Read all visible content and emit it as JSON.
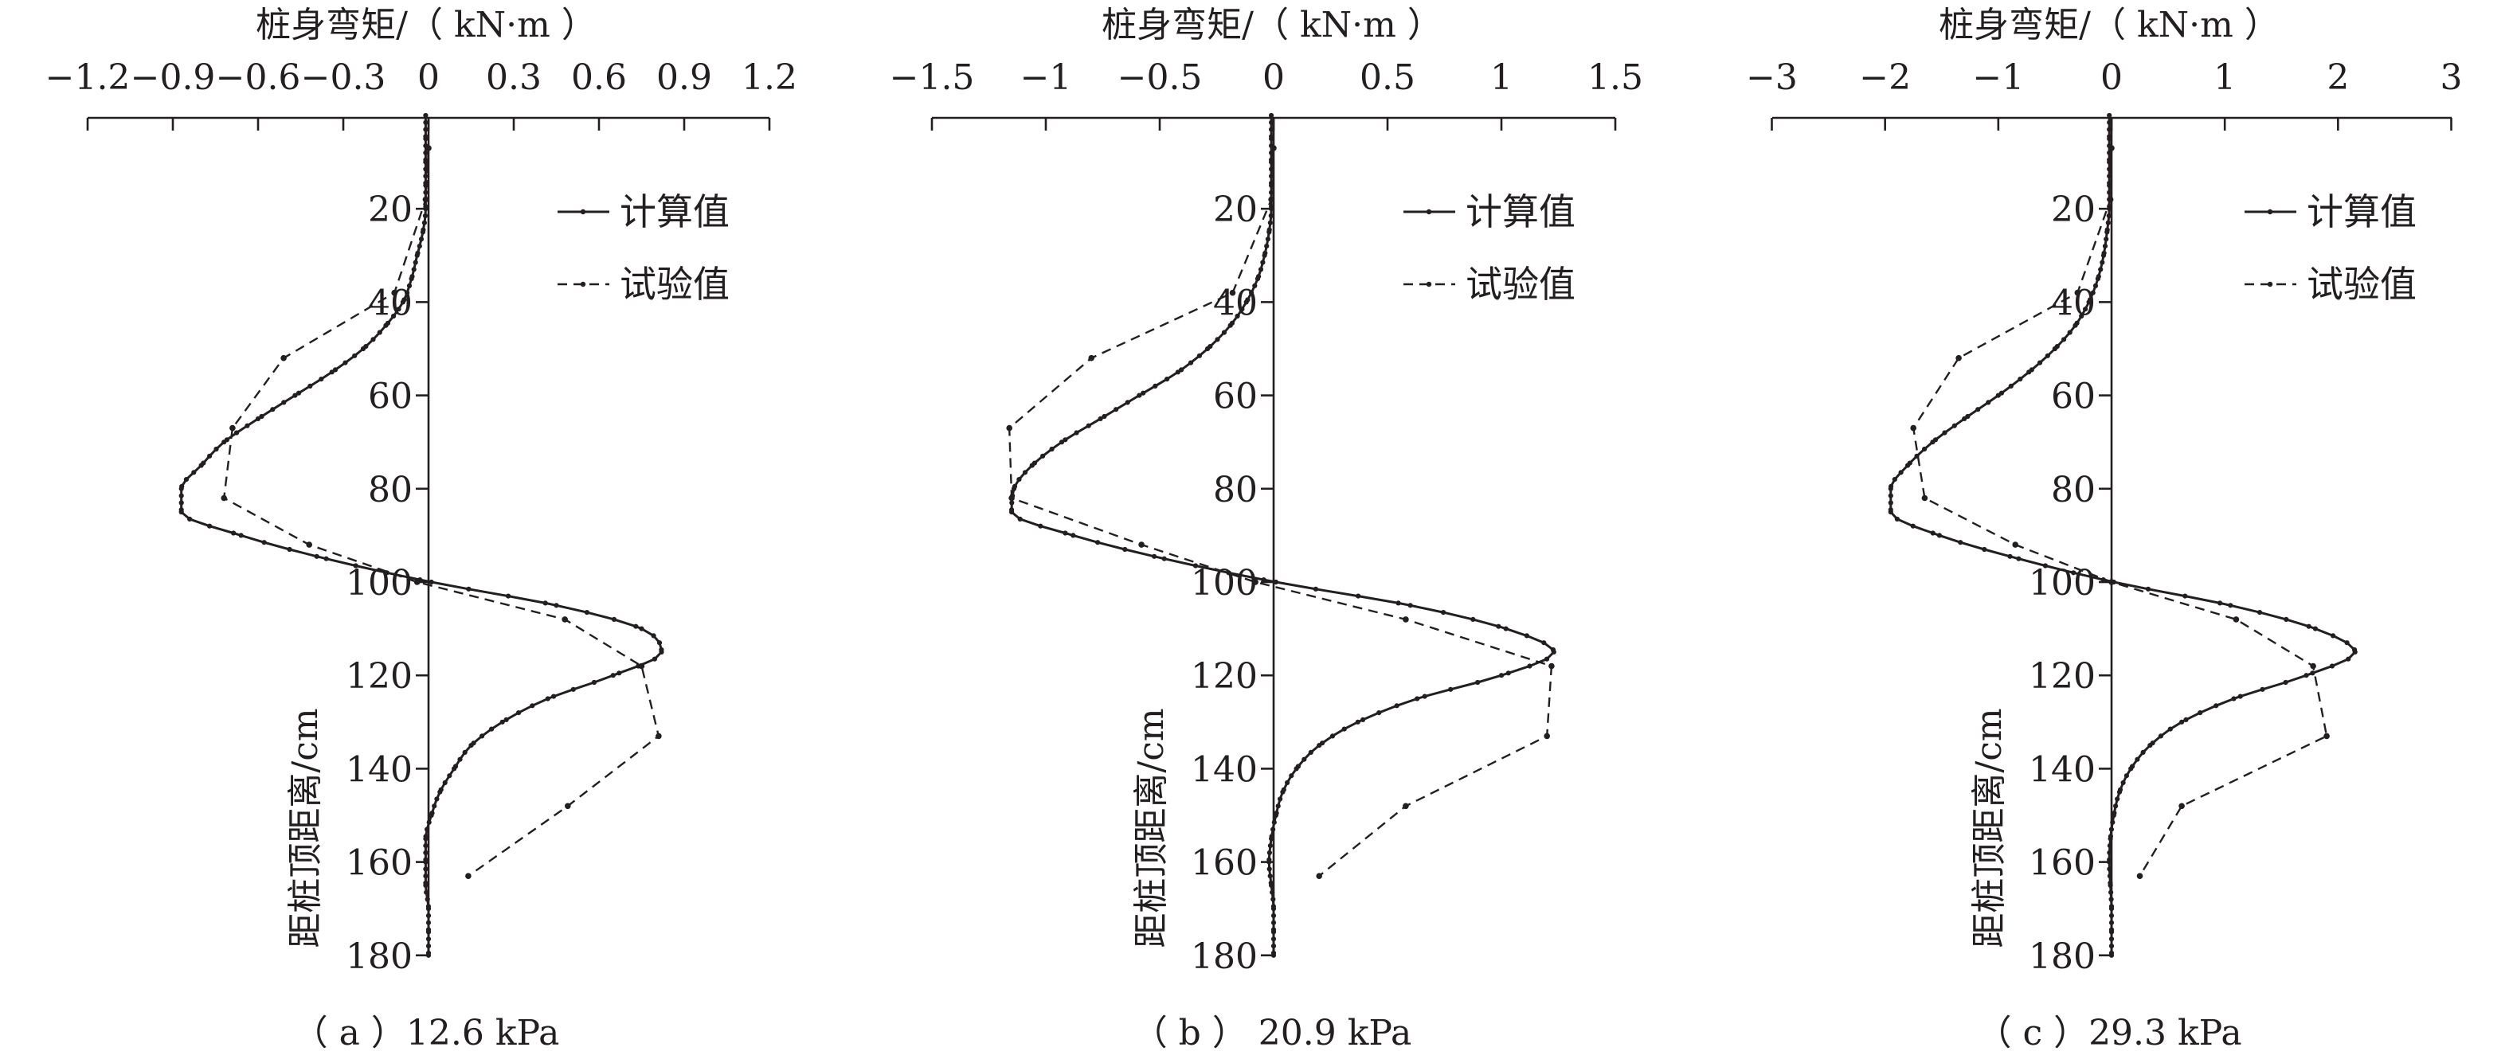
{
  "figure": {
    "colors": {
      "ink": "#231f20",
      "background": "#ffffff"
    }
  },
  "chart_data": [
    {
      "type": "line",
      "panel_label": "（ a ）12.6 kPa",
      "xlabel": "桩身弯矩/（ kN·m ）",
      "ylabel": "距桩顶距离/cm",
      "xlim": [
        -1.2,
        1.2
      ],
      "ylim": [
        180,
        0
      ],
      "x_axis_position": "top",
      "xticks": [
        -1.2,
        -0.9,
        -0.6,
        -0.3,
        0,
        0.3,
        0.6,
        0.9,
        1.2
      ],
      "xtick_labels": [
        "−1.2",
        "−0.9",
        "−0.6",
        "−0.3",
        "0",
        "0.3",
        "0.6",
        "0.9",
        "1.2"
      ],
      "yticks": [
        20,
        40,
        60,
        80,
        100,
        120,
        140,
        160,
        180
      ],
      "ytick_labels": [
        "20",
        "40",
        "60",
        "80",
        "100",
        "120",
        "140",
        "160",
        "180"
      ],
      "grid": false,
      "legend_position": "top-right",
      "series": [
        {
          "name": "计算值",
          "style": "solid",
          "y": [
            0,
            5,
            10,
            15,
            20,
            25,
            30,
            35,
            40,
            45,
            50,
            55,
            60,
            65,
            70,
            75,
            80,
            85,
            90,
            95,
            100,
            105,
            110,
            115,
            120,
            125,
            130,
            135,
            140,
            145,
            150,
            155,
            160,
            165,
            170,
            175,
            180
          ],
          "x": [
            -0.01,
            -0.01,
            -0.01,
            -0.01,
            -0.01,
            -0.02,
            -0.04,
            -0.06,
            -0.09,
            -0.15,
            -0.23,
            -0.34,
            -0.47,
            -0.6,
            -0.72,
            -0.8,
            -0.87,
            -0.87,
            -0.66,
            -0.36,
            0.01,
            0.45,
            0.75,
            0.82,
            0.65,
            0.42,
            0.26,
            0.15,
            0.09,
            0.04,
            0.01,
            -0.01,
            -0.01,
            -0.01,
            0.0,
            0.0,
            0.0
          ]
        },
        {
          "name": "试验值",
          "style": "dashed",
          "y": [
            7,
            18,
            38,
            52,
            67,
            82,
            92,
            100,
            108,
            118,
            133,
            148,
            163
          ],
          "x": [
            0.0,
            -0.01,
            -0.12,
            -0.51,
            -0.69,
            -0.72,
            -0.42,
            -0.04,
            0.48,
            0.75,
            0.81,
            0.49,
            0.14
          ]
        }
      ]
    },
    {
      "type": "line",
      "panel_label": "（ b ） 20.9 kPa",
      "xlabel": "桩身弯矩/（ kN·m ）",
      "ylabel": "距桩顶距离/cm",
      "xlim": [
        -1.5,
        1.5
      ],
      "ylim": [
        180,
        0
      ],
      "x_axis_position": "top",
      "xticks": [
        -1.5,
        -1,
        -0.5,
        0,
        0.5,
        1,
        1.5
      ],
      "xtick_labels": [
        "−1.5",
        "−1",
        "−0.5",
        "0",
        "0.5",
        "1",
        "1.5"
      ],
      "yticks": [
        20,
        40,
        60,
        80,
        100,
        120,
        140,
        160,
        180
      ],
      "ytick_labels": [
        "20",
        "40",
        "60",
        "80",
        "100",
        "120",
        "140",
        "160",
        "180"
      ],
      "grid": false,
      "legend_position": "top-right",
      "series": [
        {
          "name": "计算值",
          "style": "solid",
          "y": [
            0,
            5,
            10,
            15,
            20,
            25,
            30,
            35,
            40,
            45,
            50,
            55,
            60,
            65,
            70,
            75,
            80,
            85,
            90,
            95,
            100,
            105,
            110,
            115,
            120,
            125,
            130,
            135,
            140,
            145,
            150,
            155,
            160,
            165,
            170,
            175,
            180
          ],
          "x": [
            -0.01,
            -0.01,
            -0.01,
            -0.01,
            -0.01,
            -0.02,
            -0.04,
            -0.07,
            -0.12,
            -0.19,
            -0.29,
            -0.42,
            -0.59,
            -0.76,
            -0.93,
            -1.06,
            -1.14,
            -1.15,
            -0.88,
            -0.48,
            0.01,
            0.6,
            1.02,
            1.23,
            1.0,
            0.63,
            0.37,
            0.2,
            0.1,
            0.04,
            0.01,
            -0.01,
            -0.02,
            -0.01,
            0.0,
            0.0,
            0.0
          ]
        },
        {
          "name": "试验值",
          "style": "dashed",
          "y": [
            7,
            18,
            38,
            52,
            67,
            82,
            92,
            100,
            108,
            118,
            133,
            148,
            163
          ],
          "x": [
            0.0,
            -0.01,
            -0.18,
            -0.8,
            -1.16,
            -1.15,
            -0.58,
            -0.08,
            0.58,
            1.22,
            1.2,
            0.58,
            0.2
          ]
        }
      ]
    },
    {
      "type": "line",
      "panel_label": "（ c ）29.3 kPa",
      "xlabel": "桩身弯矩/（ kN·m ）",
      "ylabel": "距桩顶距离/cm",
      "xlim": [
        -3,
        3
      ],
      "ylim": [
        180,
        0
      ],
      "x_axis_position": "top",
      "xticks": [
        -3,
        -2,
        -1,
        0,
        1,
        2,
        3
      ],
      "xtick_labels": [
        "−3",
        "−2",
        "−1",
        "0",
        "1",
        "2",
        "3"
      ],
      "yticks": [
        20,
        40,
        60,
        80,
        100,
        120,
        140,
        160,
        180
      ],
      "ytick_labels": [
        "20",
        "40",
        "60",
        "80",
        "100",
        "120",
        "140",
        "160",
        "180"
      ],
      "grid": false,
      "legend_position": "top-right",
      "series": [
        {
          "name": "计算值",
          "style": "solid",
          "y": [
            0,
            5,
            10,
            15,
            20,
            25,
            30,
            35,
            40,
            45,
            50,
            55,
            60,
            65,
            70,
            75,
            80,
            85,
            90,
            95,
            100,
            105,
            110,
            115,
            120,
            125,
            130,
            135,
            140,
            145,
            150,
            155,
            160,
            165,
            170,
            175,
            180
          ],
          "x": [
            -0.02,
            -0.02,
            -0.02,
            -0.02,
            -0.02,
            -0.04,
            -0.07,
            -0.12,
            -0.2,
            -0.32,
            -0.5,
            -0.73,
            -1.0,
            -1.3,
            -1.58,
            -1.8,
            -1.95,
            -1.95,
            -1.52,
            -0.82,
            0.02,
            1.05,
            1.8,
            2.15,
            1.72,
            1.08,
            0.62,
            0.34,
            0.17,
            0.07,
            0.02,
            -0.01,
            -0.02,
            -0.01,
            0.0,
            0.0,
            0.0
          ]
        },
        {
          "name": "试验值",
          "style": "dashed",
          "y": [
            7,
            18,
            38,
            52,
            67,
            82,
            92,
            100,
            108,
            118,
            133,
            148,
            163
          ],
          "x": [
            0.0,
            -0.01,
            -0.3,
            -1.35,
            -1.75,
            -1.65,
            -0.85,
            0.0,
            1.1,
            1.78,
            1.9,
            0.62,
            0.25
          ]
        }
      ]
    }
  ]
}
